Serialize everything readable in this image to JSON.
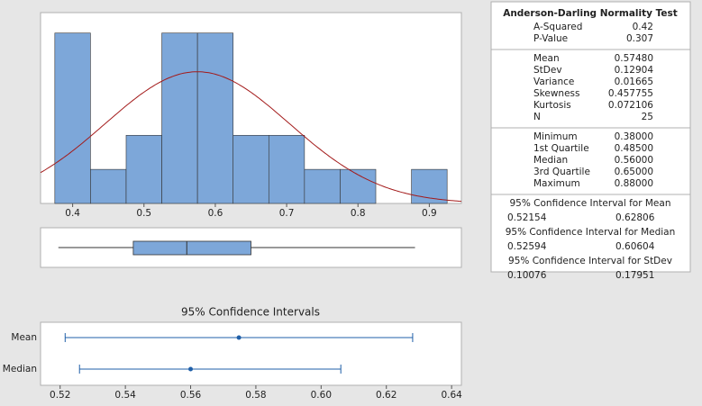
{
  "chart_data": [
    {
      "type": "histogram",
      "bins": [
        0.375,
        0.425,
        0.475,
        0.525,
        0.575,
        0.625,
        0.675,
        0.725,
        0.775,
        0.825,
        0.875,
        0.925
      ],
      "values": [
        5,
        1,
        2,
        5,
        5,
        2,
        2,
        1,
        1,
        0,
        1
      ],
      "color": "#7da7d9",
      "curve_color": "#a31a1a",
      "xlim": [
        0.355,
        0.945
      ],
      "ylim": [
        0,
        5.6
      ],
      "xticks": [
        0.4,
        0.5,
        0.6,
        0.7,
        0.8,
        0.9
      ]
    },
    {
      "type": "box",
      "color": "#7da7d9",
      "xlim": [
        0.355,
        0.945
      ]
    },
    {
      "type": "interval",
      "title": "95% Confidence Intervals",
      "categories": [
        "Mean",
        "Median"
      ],
      "color": "#1f5fa8",
      "xlim": [
        0.514,
        0.643
      ],
      "xticks": [
        0.52,
        0.54,
        0.56,
        0.58,
        {
          "value": 0.6,
          "label": "0.60"
        },
        0.62,
        0.64
      ]
    }
  ],
  "stats_table": {
    "sections": [
      {
        "title": "Anderson-Darling Normality Test",
        "rows": [
          {
            "label": "A-Squared",
            "value": 0.42
          },
          {
            "label": "P-Value",
            "value": 0.307
          }
        ]
      },
      {
        "rows": [
          {
            "label": "Mean",
            "value": 0.5748,
            "value_label": "0.57480"
          },
          {
            "label": "StDev",
            "value": 0.12904
          },
          {
            "label": "Variance",
            "value": 0.01665
          },
          {
            "label": "Skewness",
            "value": 0.457755
          },
          {
            "label": "Kurtosis",
            "value": 0.072106
          },
          {
            "label": "N",
            "value": 25
          }
        ]
      },
      {
        "rows": [
          {
            "label": "Minimum",
            "value": 0.38,
            "value_label": "0.38000"
          },
          {
            "label": "1st Quartile",
            "value": 0.485,
            "value_label": "0.48500"
          },
          {
            "label": "Median",
            "value": 0.56,
            "value_label": "0.56000"
          },
          {
            "label": "3rd Quartile",
            "value": 0.65,
            "value_label": "0.65000"
          },
          {
            "label": "Maximum",
            "value": 0.88,
            "value_label": "0.88000"
          }
        ]
      },
      {
        "title": "95% Confidence Interval for Mean",
        "interval": [
          0.52154,
          0.62806
        ]
      },
      {
        "title": "95% Confidence Interval for Median",
        "interval": [
          0.52594,
          0.60604
        ]
      },
      {
        "title": "95% Confidence Interval for StDev",
        "interval": [
          0.10076,
          0.17951
        ]
      }
    ]
  }
}
